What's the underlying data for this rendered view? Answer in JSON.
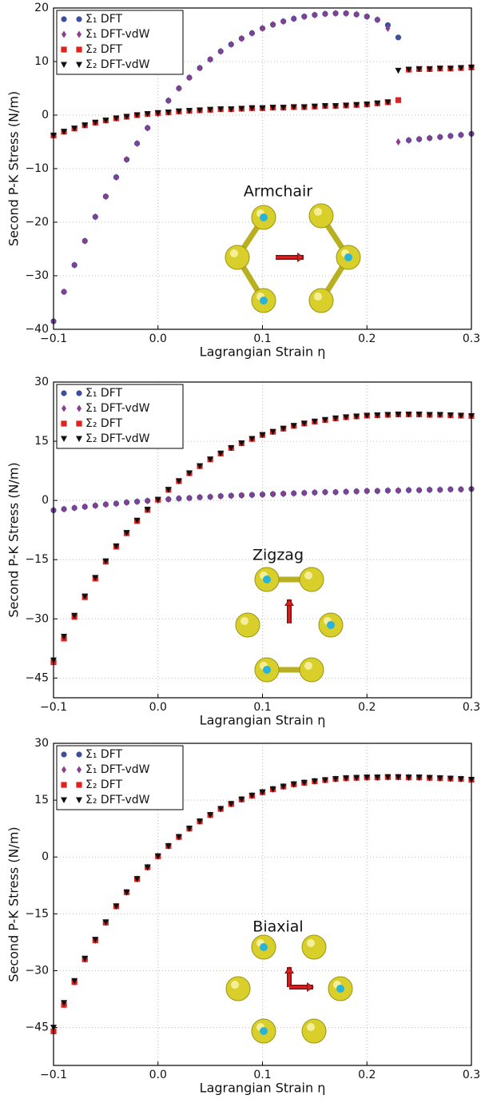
{
  "chart_data": [
    {
      "type": "scatter",
      "annotation": "Armchair",
      "xlabel": "Lagrangian Strain η",
      "ylabel": "Second P-K Stress (N/m)",
      "x": [
        -0.1,
        -0.09,
        -0.08,
        -0.07,
        -0.06,
        -0.05,
        -0.04,
        -0.03,
        -0.02,
        -0.01,
        0,
        0.01,
        0.02,
        0.03,
        0.04,
        0.05,
        0.06,
        0.07,
        0.08,
        0.09,
        0.1,
        0.11,
        0.12,
        0.13,
        0.14,
        0.15,
        0.16,
        0.17,
        0.18,
        0.19,
        0.2,
        0.21,
        0.22,
        0.23,
        0.24,
        0.25,
        0.26,
        0.27,
        0.28,
        0.29,
        0.3
      ],
      "xlim": [
        -0.1,
        0.3
      ],
      "xticks": [
        {
          "value": -0.1,
          "label": "−0.1"
        },
        {
          "value": 0,
          "label": "0.0"
        },
        0.1,
        0.2,
        0.3
      ],
      "ylim": [
        -40,
        20
      ],
      "yticks": [
        {
          "value": -40,
          "label": "−40"
        },
        {
          "value": -30,
          "label": "−30"
        },
        {
          "value": -20,
          "label": "−20"
        },
        {
          "value": -10,
          "label": "−10"
        },
        0,
        10,
        20
      ],
      "grid": true,
      "legend": "upper left",
      "series": [
        {
          "name": "Σ₁ DFT",
          "color": "#3b4f9c",
          "marker": "circle",
          "values": [
            -38.5,
            -33,
            -28,
            -23.5,
            -19,
            -15.2,
            -11.6,
            -8.3,
            -5.3,
            -2.4,
            0.3,
            2.7,
            5,
            7,
            8.8,
            10.4,
            11.9,
            13.2,
            14.3,
            15.3,
            16.2,
            16.9,
            17.5,
            18,
            18.4,
            18.7,
            18.9,
            19,
            19,
            18.8,
            18.4,
            17.8,
            16.8,
            14.5,
            -4.7,
            -4.5,
            -4.3,
            -4.1,
            -3.9,
            -3.7,
            -3.5
          ]
        },
        {
          "name": "Σ₁ DFT-vdW",
          "color": "#8b3d8f",
          "marker": "diamond",
          "values": [
            -38.5,
            -33,
            -28,
            -23.5,
            -19,
            -15.2,
            -11.6,
            -8.3,
            -5.3,
            -2.4,
            0.3,
            2.7,
            5,
            7,
            8.8,
            10.4,
            11.9,
            13.2,
            14.3,
            15.3,
            16.2,
            16.9,
            17.5,
            18,
            18.4,
            18.7,
            18.9,
            19,
            19,
            18.8,
            18.4,
            17.8,
            16.2,
            -5,
            -4.7,
            -4.5,
            -4.3,
            -4.1,
            -3.9,
            -3.7,
            -3.5
          ]
        },
        {
          "name": "Σ₂ DFT",
          "color": "#e0211d",
          "marker": "square",
          "values": [
            -3.8,
            -3.1,
            -2.5,
            -1.9,
            -1.4,
            -1,
            -0.6,
            -0.3,
            0,
            0.2,
            0.4,
            0.5,
            0.7,
            0.8,
            0.9,
            1,
            1.1,
            1.1,
            1.2,
            1.3,
            1.3,
            1.4,
            1.4,
            1.5,
            1.5,
            1.6,
            1.7,
            1.7,
            1.8,
            1.9,
            2,
            2.2,
            2.4,
            2.8,
            8.5,
            8.6,
            8.6,
            8.7,
            8.7,
            8.8,
            8.9
          ]
        },
        {
          "name": "Σ₂ DFT-vdW",
          "color": "#111111",
          "marker": "triangle",
          "values": [
            -3.8,
            -3.1,
            -2.5,
            -1.9,
            -1.4,
            -1,
            -0.6,
            -0.3,
            0,
            0.2,
            0.4,
            0.5,
            0.7,
            0.8,
            0.9,
            1,
            1.1,
            1.1,
            1.2,
            1.3,
            1.3,
            1.4,
            1.4,
            1.5,
            1.5,
            1.6,
            1.7,
            1.7,
            1.8,
            1.9,
            2,
            2.2,
            2.4,
            8.3,
            8.5,
            8.6,
            8.6,
            8.7,
            8.7,
            8.8,
            8.9
          ]
        }
      ]
    },
    {
      "type": "scatter",
      "annotation": "Zigzag",
      "xlabel": "Lagrangian Strain η",
      "ylabel": "Second P-K Stress (N/m)",
      "x": [
        -0.1,
        -0.09,
        -0.08,
        -0.07,
        -0.06,
        -0.05,
        -0.04,
        -0.03,
        -0.02,
        -0.01,
        0,
        0.01,
        0.02,
        0.03,
        0.04,
        0.05,
        0.06,
        0.07,
        0.08,
        0.09,
        0.1,
        0.11,
        0.12,
        0.13,
        0.14,
        0.15,
        0.16,
        0.17,
        0.18,
        0.19,
        0.2,
        0.21,
        0.22,
        0.23,
        0.24,
        0.25,
        0.26,
        0.27,
        0.28,
        0.29,
        0.3
      ],
      "xlim": [
        -0.1,
        0.3
      ],
      "xticks": [
        {
          "value": -0.1,
          "label": "−0.1"
        },
        {
          "value": 0,
          "label": "0.0"
        },
        0.1,
        0.2,
        0.3
      ],
      "ylim": [
        -50,
        30
      ],
      "yticks": [
        {
          "value": -45,
          "label": "−45"
        },
        {
          "value": -30,
          "label": "−30"
        },
        {
          "value": -15,
          "label": "−15"
        },
        0,
        15,
        30
      ],
      "grid": true,
      "legend": "upper left",
      "series": [
        {
          "name": "Σ₁ DFT",
          "color": "#3b4f9c",
          "marker": "circle",
          "values": [
            -2.5,
            -2.2,
            -1.9,
            -1.6,
            -1.3,
            -1,
            -0.8,
            -0.5,
            -0.3,
            -0.1,
            0.1,
            0.3,
            0.5,
            0.6,
            0.8,
            0.9,
            1.1,
            1.2,
            1.3,
            1.4,
            1.5,
            1.6,
            1.7,
            1.8,
            1.9,
            2,
            2.1,
            2.1,
            2.2,
            2.3,
            2.4,
            2.4,
            2.5,
            2.5,
            2.6,
            2.6,
            2.7,
            2.7,
            2.8,
            2.8,
            2.9
          ]
        },
        {
          "name": "Σ₁ DFT-vdW",
          "color": "#8b3d8f",
          "marker": "diamond",
          "values": [
            -2.5,
            -2.2,
            -1.9,
            -1.6,
            -1.3,
            -1,
            -0.8,
            -0.5,
            -0.3,
            -0.1,
            0.1,
            0.3,
            0.5,
            0.6,
            0.8,
            0.9,
            1.1,
            1.2,
            1.3,
            1.4,
            1.5,
            1.6,
            1.7,
            1.8,
            1.9,
            2,
            2.1,
            2.1,
            2.2,
            2.3,
            2.4,
            2.4,
            2.5,
            2.5,
            2.6,
            2.6,
            2.7,
            2.7,
            2.8,
            2.8,
            2.9
          ]
        },
        {
          "name": "Σ₂ DFT",
          "color": "#e0211d",
          "marker": "square",
          "values": [
            -41,
            -35,
            -29.5,
            -24.5,
            -19.8,
            -15.5,
            -11.7,
            -8.3,
            -5.2,
            -2.4,
            0.2,
            2.7,
            4.9,
            6.9,
            8.7,
            10.4,
            11.9,
            13.3,
            14.5,
            15.6,
            16.6,
            17.4,
            18.2,
            18.9,
            19.5,
            20,
            20.4,
            20.8,
            21.1,
            21.3,
            21.5,
            21.6,
            21.7,
            21.8,
            21.8,
            21.8,
            21.7,
            21.7,
            21.6,
            21.5,
            21.4
          ]
        },
        {
          "name": "Σ₂ DFT-vdW",
          "color": "#111111",
          "marker": "triangle",
          "values": [
            -40.5,
            -34.5,
            -29.2,
            -24.3,
            -19.6,
            -15.4,
            -11.6,
            -8.2,
            -5.1,
            -2.3,
            0.2,
            2.7,
            4.9,
            6.9,
            8.7,
            10.4,
            11.9,
            13.3,
            14.5,
            15.6,
            16.6,
            17.4,
            18.2,
            18.9,
            19.5,
            20,
            20.4,
            20.8,
            21.1,
            21.3,
            21.5,
            21.6,
            21.7,
            21.8,
            21.8,
            21.8,
            21.7,
            21.7,
            21.6,
            21.5,
            21.4
          ]
        }
      ]
    },
    {
      "type": "scatter",
      "annotation": "Biaxial",
      "xlabel": "Lagrangian Strain η",
      "ylabel": "Second P-K Stress (N/m)",
      "x": [
        -0.1,
        -0.09,
        -0.08,
        -0.07,
        -0.06,
        -0.05,
        -0.04,
        -0.03,
        -0.02,
        -0.01,
        0,
        0.01,
        0.02,
        0.03,
        0.04,
        0.05,
        0.06,
        0.07,
        0.08,
        0.09,
        0.1,
        0.11,
        0.12,
        0.13,
        0.14,
        0.15,
        0.16,
        0.17,
        0.18,
        0.19,
        0.2,
        0.21,
        0.22,
        0.23,
        0.24,
        0.25,
        0.26,
        0.27,
        0.28,
        0.29,
        0.3
      ],
      "xlim": [
        -0.1,
        0.3
      ],
      "xticks": [
        {
          "value": -0.1,
          "label": "−0.1"
        },
        {
          "value": 0,
          "label": "0.0"
        },
        0.1,
        0.2,
        0.3
      ],
      "ylim": [
        -55,
        30
      ],
      "yticks": [
        {
          "value": -45,
          "label": "−45"
        },
        {
          "value": -30,
          "label": "−30"
        },
        {
          "value": -15,
          "label": "−15"
        },
        0,
        15,
        30
      ],
      "grid": true,
      "legend": "upper left",
      "series": [
        {
          "name": "Σ₁ DFT",
          "color": "#3b4f9c",
          "marker": "circle",
          "values": [
            -46,
            -39,
            -33,
            -27,
            -22,
            -17.3,
            -13,
            -9.3,
            -5.8,
            -2.7,
            0.2,
            2.9,
            5.3,
            7.5,
            9.4,
            11.1,
            12.7,
            14,
            15.2,
            16.2,
            17.1,
            17.9,
            18.6,
            19.2,
            19.6,
            20,
            20.3,
            20.6,
            20.8,
            20.9,
            21,
            21,
            21.1,
            21.1,
            21,
            21,
            20.9,
            20.8,
            20.7,
            20.6,
            20.4
          ]
        },
        {
          "name": "Σ₁ DFT-vdW",
          "color": "#8b3d8f",
          "marker": "diamond",
          "values": [
            -46,
            -39,
            -33,
            -27,
            -22,
            -17.3,
            -13,
            -9.3,
            -5.8,
            -2.7,
            0.2,
            2.9,
            5.3,
            7.5,
            9.4,
            11.1,
            12.7,
            14,
            15.2,
            16.2,
            17.1,
            17.9,
            18.6,
            19.2,
            19.6,
            20,
            20.3,
            20.6,
            20.8,
            20.9,
            21,
            21,
            21.1,
            21.1,
            21,
            21,
            20.9,
            20.8,
            20.7,
            20.6,
            20.4
          ]
        },
        {
          "name": "Σ₂ DFT",
          "color": "#e0211d",
          "marker": "square",
          "values": [
            -46,
            -39,
            -33,
            -27,
            -22,
            -17.3,
            -13,
            -9.3,
            -5.8,
            -2.7,
            0.2,
            2.9,
            5.3,
            7.5,
            9.4,
            11.1,
            12.7,
            14,
            15.2,
            16.2,
            17.1,
            17.9,
            18.6,
            19.2,
            19.6,
            20,
            20.3,
            20.6,
            20.8,
            20.9,
            21,
            21,
            21.1,
            21.1,
            21,
            21,
            20.9,
            20.8,
            20.7,
            20.6,
            20.4
          ]
        },
        {
          "name": "Σ₂ DFT-vdW",
          "color": "#111111",
          "marker": "triangle",
          "values": [
            -45,
            -38.5,
            -32.7,
            -26.8,
            -21.8,
            -17.2,
            -13,
            -9.3,
            -5.8,
            -2.7,
            0.2,
            2.9,
            5.3,
            7.5,
            9.4,
            11.1,
            12.7,
            14,
            15.2,
            16.2,
            17.1,
            17.9,
            18.6,
            19.2,
            19.6,
            20,
            20.3,
            20.6,
            20.8,
            20.9,
            21,
            21,
            21.1,
            21.1,
            21,
            21,
            20.9,
            20.8,
            20.7,
            20.6,
            20.4
          ]
        }
      ]
    }
  ]
}
